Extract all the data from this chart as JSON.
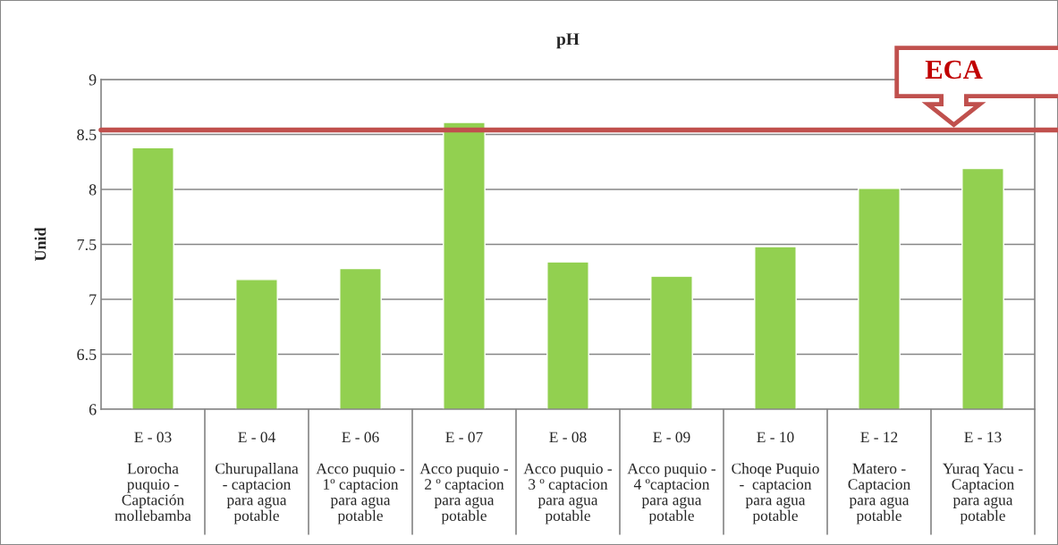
{
  "chart_data": {
    "type": "bar",
    "title": "pH",
    "ylabel": "Unid",
    "categories": [
      "E - 03\n\nLorocha\npuquio -\nCaptación\nmollebamba",
      "E - 04\n\nChurupallana\n- captacion\npara agua\npotable",
      "E - 06\n\nAcco puquio -\n1º captacion\npara agua\npotable",
      "E - 07\n\nAcco puquio -\n2 º captacion\npara agua\npotable",
      "E - 08\n\nAcco puquio -\n3 º captacion\npara agua\npotable",
      "E - 09\n\nAcco puquio -\n4 ºcaptacion\npara agua\npotable",
      "E - 10\n\nChoqe Puquio\n-  captacion\npara agua\npotable",
      "E - 12\n\nMatero -\nCaptacion\npara agua\npotable",
      "E - 13\n\nYuraq Yacu -\nCaptacion\npara agua\npotable"
    ],
    "values": [
      8.38,
      7.18,
      7.28,
      8.61,
      7.34,
      7.21,
      7.48,
      8.01,
      8.19
    ],
    "color": "#92d050",
    "ylim": [
      6,
      9
    ],
    "yticks": [
      6,
      6.5,
      7,
      7.5,
      8,
      8.5,
      9
    ],
    "grid": "y",
    "ref_lines": [
      {
        "axis": "y",
        "value": 8.54,
        "label": "ECA",
        "color": "#c0504d"
      }
    ]
  }
}
